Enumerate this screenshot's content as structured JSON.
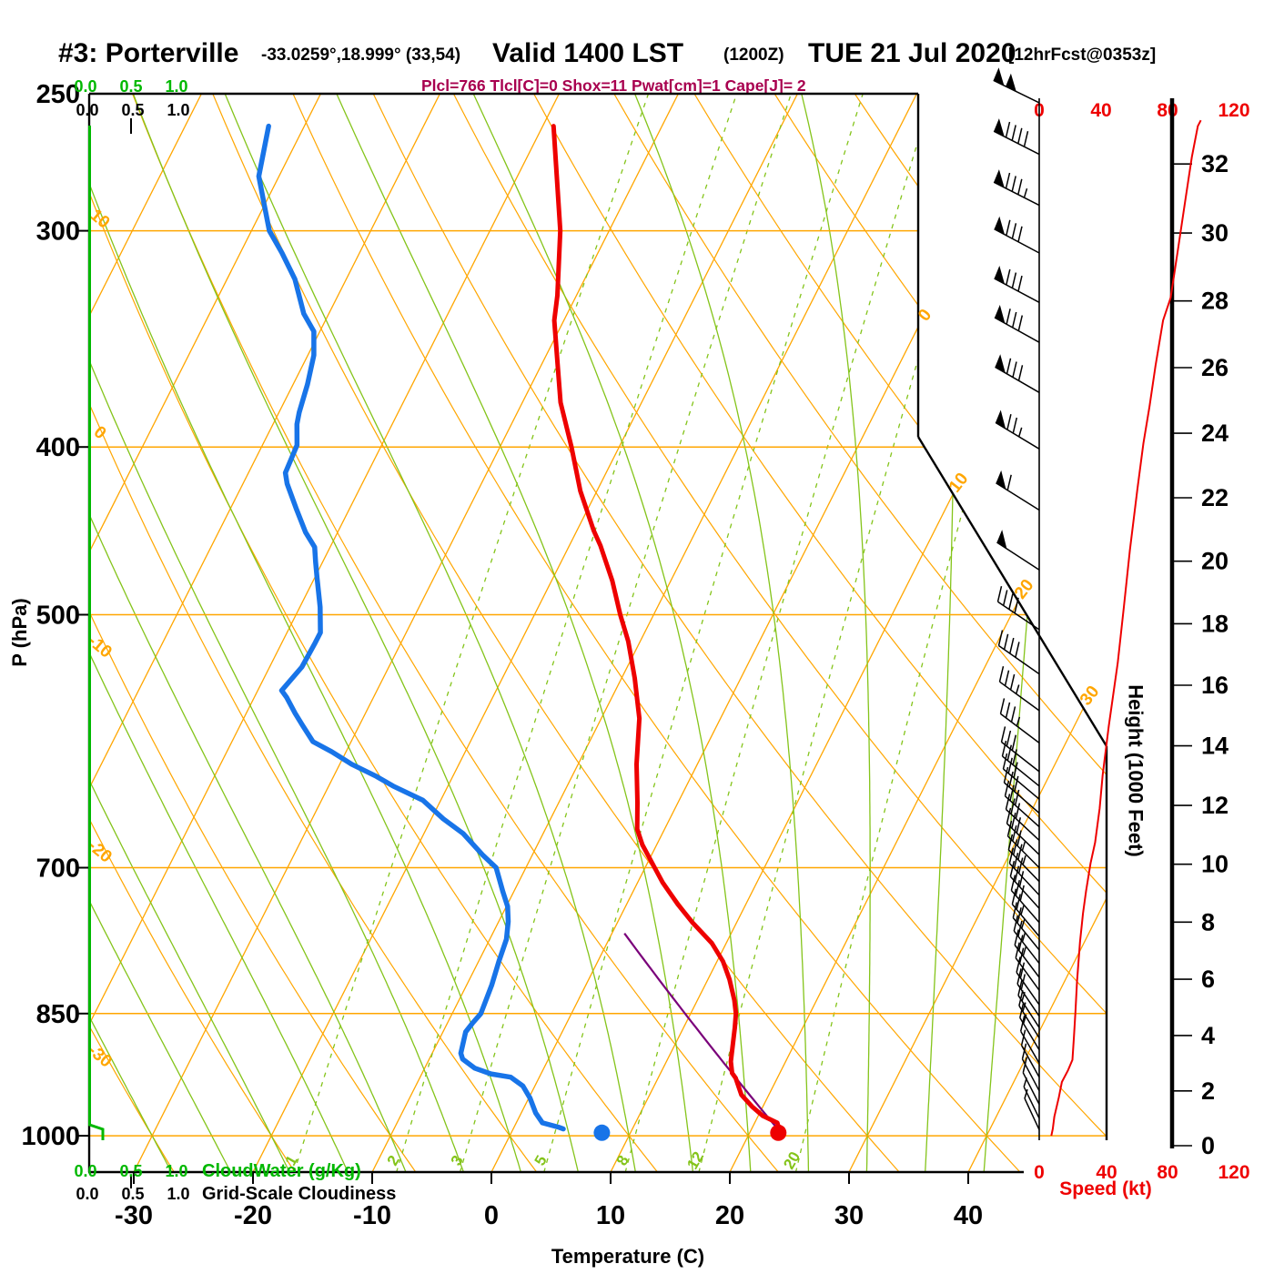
{
  "header": {
    "station": "#3: Porterville",
    "coords": "-33.0259°,18.999° (33,54)",
    "valid": "Valid 1400 LST",
    "zulu": "(1200Z)",
    "date": "TUE 21 Jul 2020",
    "fcst": "[12hrFcst@0353z]",
    "params_line": "Plcl=766 Tlcl[C]=0 Shox=11 Pwat[cm]=1 Cape[J]= 2"
  },
  "axes": {
    "pressure_label": "P (hPa)",
    "temperature_label": "Temperature (C)",
    "height_label": "Height (1000 Feet)",
    "speed_label": "Speed (kt)",
    "cloudwater_label": "CloudWater (g/Kg)",
    "cloudiness_label": "Grid-Scale Cloudiness",
    "cloud_scale": [
      "0.0",
      "0.5",
      "1.0"
    ]
  },
  "chart_data": {
    "type": "skewt-logp-sounding",
    "pressure_ticks_hpa": [
      250,
      300,
      400,
      500,
      700,
      850,
      1000
    ],
    "temp_ticks_c": [
      -30,
      -20,
      -10,
      0,
      10,
      20,
      30,
      40
    ],
    "height_ticks_kft": [
      0,
      2,
      4,
      6,
      8,
      10,
      12,
      14,
      16,
      18,
      20,
      22,
      24,
      26,
      28,
      30,
      32
    ],
    "speed_ticks_kt": [
      0,
      40,
      80,
      120
    ],
    "isotherm_exit_labels_c": [
      0,
      10,
      20,
      30
    ],
    "dry_adiabat_labels_c": [
      10,
      0,
      -10,
      -20,
      -30
    ],
    "mixing_ratio_lines_gkg": [
      1,
      2,
      3,
      5,
      8,
      12,
      20
    ],
    "temperature_profile_p_t": [
      [
        261,
        -39.1
      ],
      [
        300,
        -34.1
      ],
      [
        327,
        -31.6
      ],
      [
        338,
        -30.8
      ],
      [
        358,
        -28.7
      ],
      [
        377,
        -26.8
      ],
      [
        400,
        -24.0
      ],
      [
        424,
        -21.4
      ],
      [
        447,
        -18.6
      ],
      [
        456,
        -17.4
      ],
      [
        478,
        -14.9
      ],
      [
        500,
        -12.8
      ],
      [
        518,
        -11.0
      ],
      [
        544,
        -8.9
      ],
      [
        574,
        -6.8
      ],
      [
        610,
        -5.1
      ],
      [
        642,
        -3.4
      ],
      [
        665,
        -2.3
      ],
      [
        679,
        -1.2
      ],
      [
        700,
        0.8
      ],
      [
        714,
        2.1
      ],
      [
        735,
        4.3
      ],
      [
        753,
        6.3
      ],
      [
        774,
        8.8
      ],
      [
        793,
        10.5
      ],
      [
        812,
        11.8
      ],
      [
        835,
        13.1
      ],
      [
        850,
        13.8
      ],
      [
        866,
        14.3
      ],
      [
        884,
        14.8
      ],
      [
        906,
        15.4
      ],
      [
        920,
        16.0
      ],
      [
        926,
        16.5
      ],
      [
        947,
        17.7
      ],
      [
        962,
        19.1
      ],
      [
        974,
        20.4
      ],
      [
        983,
        21.9
      ],
      [
        993,
        22.4
      ]
    ],
    "dewpoint_profile_p_t": [
      [
        261,
        -63.0
      ],
      [
        279,
        -61.7
      ],
      [
        290,
        -60.0
      ],
      [
        300,
        -58.5
      ],
      [
        309,
        -56.5
      ],
      [
        320,
        -54.3
      ],
      [
        335,
        -52.1
      ],
      [
        343,
        -50.5
      ],
      [
        354,
        -49.5
      ],
      [
        368,
        -48.8
      ],
      [
        382,
        -48.3
      ],
      [
        388,
        -48.0
      ],
      [
        399,
        -47.1
      ],
      [
        414,
        -46.9
      ],
      [
        420,
        -46.3
      ],
      [
        434,
        -44.5
      ],
      [
        448,
        -42.7
      ],
      [
        457,
        -41.3
      ],
      [
        466,
        -40.6
      ],
      [
        476,
        -39.8
      ],
      [
        495,
        -38.3
      ],
      [
        512,
        -37.2
      ],
      [
        519,
        -37.2
      ],
      [
        536,
        -37.3
      ],
      [
        553,
        -38.0
      ],
      [
        558,
        -37.3
      ],
      [
        570,
        -35.9
      ],
      [
        579,
        -34.8
      ],
      [
        592,
        -33.2
      ],
      [
        600,
        -31.2
      ],
      [
        610,
        -29.0
      ],
      [
        620,
        -26.4
      ],
      [
        628,
        -24.6
      ],
      [
        640,
        -21.5
      ],
      [
        656,
        -19.0
      ],
      [
        669,
        -16.7
      ],
      [
        688,
        -14.2
      ],
      [
        700,
        -12.5
      ],
      [
        723,
        -10.9
      ],
      [
        737,
        -9.9
      ],
      [
        752,
        -9.2
      ],
      [
        770,
        -8.6
      ],
      [
        793,
        -8.3
      ],
      [
        818,
        -7.9
      ],
      [
        850,
        -7.6
      ],
      [
        861,
        -7.9
      ],
      [
        871,
        -8.1
      ],
      [
        896,
        -7.6
      ],
      [
        903,
        -7.2
      ],
      [
        914,
        -5.8
      ],
      [
        921,
        -4.2
      ],
      [
        925,
        -2.4
      ],
      [
        936,
        -1.0
      ],
      [
        951,
        0.1
      ],
      [
        970,
        1.2
      ],
      [
        983,
        2.2
      ],
      [
        989,
        3.8
      ],
      [
        991,
        4.2
      ]
    ],
    "surface_dots": {
      "temperature_c": 22.4,
      "dewpoint_c": 7.6,
      "pressure_hpa": 996
    },
    "parcel": {
      "p_start_hpa": 996,
      "p_lcl_hpa": 766,
      "theta_k": 296.1
    },
    "wind_barbs_p_kt_ang": [
      [
        253,
        100,
        26
      ],
      [
        271,
        90,
        27
      ],
      [
        290,
        85,
        27
      ],
      [
        309,
        80,
        28
      ],
      [
        330,
        80,
        28
      ],
      [
        348,
        80,
        29
      ],
      [
        372,
        80,
        30
      ],
      [
        401,
        75,
        31
      ],
      [
        435,
        60,
        32
      ],
      [
        471,
        50,
        33
      ],
      [
        510,
        40,
        34
      ],
      [
        541,
        40,
        35
      ],
      [
        568,
        35,
        36
      ],
      [
        593,
        35,
        37
      ],
      [
        616,
        30,
        38
      ],
      [
        628,
        30,
        39
      ],
      [
        639,
        30,
        40
      ],
      [
        651,
        30,
        41
      ],
      [
        663,
        30,
        42
      ],
      [
        675,
        30,
        43
      ],
      [
        688,
        30,
        44
      ],
      [
        700,
        35,
        45
      ],
      [
        713,
        35,
        46
      ],
      [
        726,
        30,
        47
      ],
      [
        739,
        30,
        48
      ],
      [
        753,
        30,
        49
      ],
      [
        767,
        25,
        50
      ],
      [
        781,
        25,
        51
      ],
      [
        795,
        25,
        52
      ],
      [
        810,
        25,
        53
      ],
      [
        824,
        20,
        54
      ],
      [
        840,
        20,
        55
      ],
      [
        853,
        20,
        56
      ],
      [
        866,
        15,
        57
      ],
      [
        878,
        15,
        58
      ],
      [
        892,
        15,
        59
      ],
      [
        908,
        10,
        60
      ],
      [
        925,
        10,
        61
      ],
      [
        942,
        10,
        62
      ],
      [
        959,
        10,
        63
      ],
      [
        977,
        5,
        64
      ],
      [
        992,
        5,
        65
      ]
    ],
    "speed_profile_p_kt": [
      [
        1000,
        8
      ],
      [
        991,
        9
      ],
      [
        975,
        10
      ],
      [
        950,
        13
      ],
      [
        931,
        15
      ],
      [
        917,
        19
      ],
      [
        904,
        22
      ],
      [
        876,
        23
      ],
      [
        848,
        24
      ],
      [
        815,
        25
      ],
      [
        773,
        27
      ],
      [
        744,
        29
      ],
      [
        722,
        31
      ],
      [
        696,
        34
      ],
      [
        677,
        37
      ],
      [
        647,
        40
      ],
      [
        619,
        42
      ],
      [
        580,
        46
      ],
      [
        533,
        52
      ],
      [
        495,
        56
      ],
      [
        459,
        60
      ],
      [
        423,
        65
      ],
      [
        398,
        69
      ],
      [
        379,
        73
      ],
      [
        359,
        77
      ],
      [
        338,
        82
      ],
      [
        328,
        87
      ],
      [
        307,
        92
      ],
      [
        287,
        97
      ],
      [
        272,
        101
      ],
      [
        261,
        105
      ],
      [
        259,
        107
      ]
    ],
    "cloudwater_profile": "zero everywhere (0.0 g/Kg)"
  },
  "colors": {
    "orange": "#FFA600",
    "green_line": "#84C41A",
    "green_cloud": "#00B800",
    "blue": "#1874E8",
    "red": "#EE0000",
    "maroon": "#A8004F",
    "purple": "#7A007A",
    "black": "#000000"
  }
}
